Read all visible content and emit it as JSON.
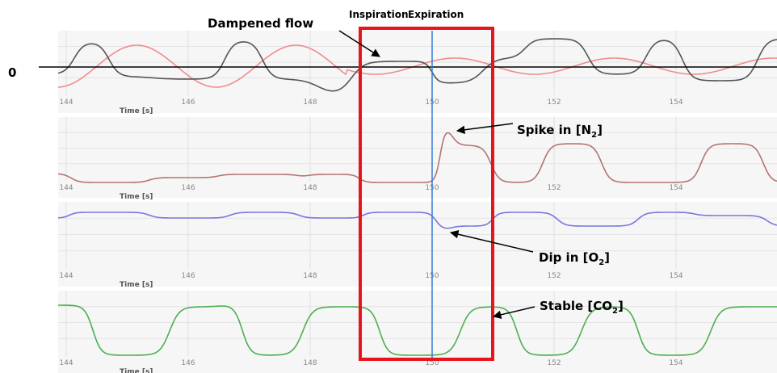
{
  "annotations": {
    "zero": "0",
    "dampened": "Dampened flow",
    "inspiration": "Inspiration",
    "expiration": "Expiration",
    "spike": {
      "text": "Spike in [N",
      "sub": "2",
      "tail": "]"
    },
    "dip": {
      "text": "Dip in [O",
      "sub": "2",
      "tail": "]"
    },
    "stable": {
      "text": "Stable [CO",
      "sub": "2",
      "tail": "]"
    }
  },
  "panels": [
    {
      "xticks": [
        144,
        146,
        148,
        150,
        152,
        154
      ],
      "xlabel": "Time [s]"
    },
    {
      "xticks": [
        144,
        146,
        148,
        150,
        152,
        154
      ],
      "xlabel": "Time [s]"
    },
    {
      "xticks": [
        144,
        146,
        148,
        150,
        152,
        154
      ],
      "xlabel": "Time [s]"
    },
    {
      "xticks": [
        144,
        146,
        148,
        150,
        152,
        154
      ],
      "xlabel": "Time [s]"
    }
  ]
}
